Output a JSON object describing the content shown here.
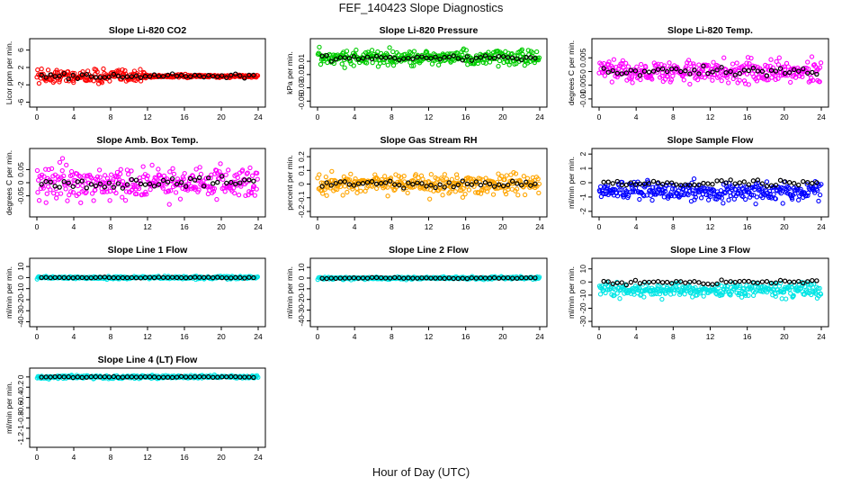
{
  "figure": {
    "title": "FEF_140423  Slope Diagnostics",
    "xlabel": "Hour of Day (UTC)"
  },
  "chart_data": [
    {
      "type": "scatter",
      "title": "Slope Li-820 CO2",
      "ylabel": "Licor ppm per min.",
      "color": "#ff0000",
      "xlim": [
        0,
        24
      ],
      "ylim": [
        -6.5,
        8
      ],
      "xticks": [
        0,
        4,
        8,
        12,
        16,
        20,
        24
      ],
      "yticks": [
        -6,
        -2,
        2,
        6
      ],
      "center": 0,
      "spread": 1.6,
      "spread_after_hour": 0.2,
      "black_at": 0
    },
    {
      "type": "scatter",
      "title": "Slope Li-820 Pressure",
      "ylabel": "kPa per min.",
      "color": "#00cc00",
      "xlim": [
        0,
        24
      ],
      "ylim": [
        -0.055,
        0.04
      ],
      "xticks": [
        0,
        4,
        8,
        12,
        16,
        20,
        24
      ],
      "yticks": [
        -0.05,
        -0.03,
        -0.01,
        0.01
      ],
      "center": 0.015,
      "spread": 0.012,
      "black_at": 0.015
    },
    {
      "type": "scatter",
      "title": "Slope Li-820 Temp.",
      "ylabel": "degrees C per min.",
      "color": "#ff00ff",
      "xlim": [
        0,
        24
      ],
      "ylim": [
        -0.012,
        0.011
      ],
      "xticks": [
        0,
        4,
        8,
        12,
        16,
        20,
        24
      ],
      "yticks": [
        -0.01,
        -0.005,
        0.0,
        0.005
      ],
      "center": 0.0,
      "spread": 0.004,
      "black_at": 0.0
    },
    {
      "type": "scatter",
      "title": "Slope Amb. Box Temp.",
      "ylabel": "degrees C per min.",
      "color": "#ff00ff",
      "xlim": [
        0,
        24
      ],
      "ylim": [
        -0.12,
        0.12
      ],
      "xticks": [
        0,
        4,
        8,
        12,
        16,
        20,
        24
      ],
      "yticks": [
        -0.05,
        0.0,
        0.05
      ],
      "center": 0.0,
      "spread": 0.06,
      "black_at": 0.0
    },
    {
      "type": "scatter",
      "title": "Slope Gas Stream RH",
      "ylabel": "percent per min.",
      "color": "#ffa500",
      "xlim": [
        0,
        24
      ],
      "ylim": [
        -0.22,
        0.24
      ],
      "xticks": [
        0,
        4,
        8,
        12,
        16,
        20,
        24
      ],
      "yticks": [
        -0.2,
        -0.1,
        0.0,
        0.1,
        0.2
      ],
      "center": 0.0,
      "spread": 0.07,
      "black_at": 0.0
    },
    {
      "type": "scatter",
      "title": "Slope Sample Flow",
      "ylabel": "ml/min per min.",
      "color": "#0000ff",
      "xlim": [
        0,
        24
      ],
      "ylim": [
        -2.2,
        2.2
      ],
      "xticks": [
        0,
        4,
        8,
        12,
        16,
        20,
        24
      ],
      "yticks": [
        -2,
        -1,
        0,
        1,
        2
      ],
      "center": -0.6,
      "spread": 0.6,
      "black_at": 0.0
    },
    {
      "type": "scatter",
      "title": "Slope Line 1 Flow",
      "ylabel": "ml/min per min.",
      "color": "#00e5e5",
      "xlim": [
        0,
        24
      ],
      "ylim": [
        -42,
        15
      ],
      "xticks": [
        0,
        4,
        8,
        12,
        16,
        20,
        24
      ],
      "yticks": [
        -40,
        -30,
        -20,
        -10,
        0,
        10
      ],
      "center": 0,
      "spread": 1.2,
      "black_at": 0
    },
    {
      "type": "scatter",
      "title": "Slope Line 2 Flow",
      "ylabel": "ml/min per min.",
      "color": "#00e5e5",
      "xlim": [
        0,
        24
      ],
      "ylim": [
        -43,
        16
      ],
      "xticks": [
        0,
        4,
        8,
        12,
        16,
        20,
        24
      ],
      "yticks": [
        -40,
        -30,
        -20,
        -10,
        0,
        10
      ],
      "center": 0,
      "spread": 1.2,
      "black_at": 0
    },
    {
      "type": "scatter",
      "title": "Slope Line 3 Flow",
      "ylabel": "ml/min per min.",
      "color": "#00e5e5",
      "xlim": [
        0,
        24
      ],
      "ylim": [
        -32,
        16
      ],
      "xticks": [
        0,
        4,
        8,
        12,
        16,
        20,
        24
      ],
      "yticks": [
        -30,
        -20,
        -10,
        0,
        10
      ],
      "center": -6,
      "spread": 5,
      "black_at": 0
    },
    {
      "type": "scatter",
      "title": "Slope Line 4 (LT) Flow",
      "ylabel": "ml/min per min.",
      "color": "#00e5e5",
      "xlim": [
        0,
        24
      ],
      "ylim": [
        -1.32,
        0.12
      ],
      "xticks": [
        0,
        4,
        8,
        12,
        16,
        20,
        24
      ],
      "yticks": [
        -1.2,
        -1.0,
        -0.8,
        -0.6,
        -0.4,
        -0.2,
        0.0
      ],
      "center": 0.0,
      "spread": 0.03,
      "black_at": 0.0
    }
  ]
}
